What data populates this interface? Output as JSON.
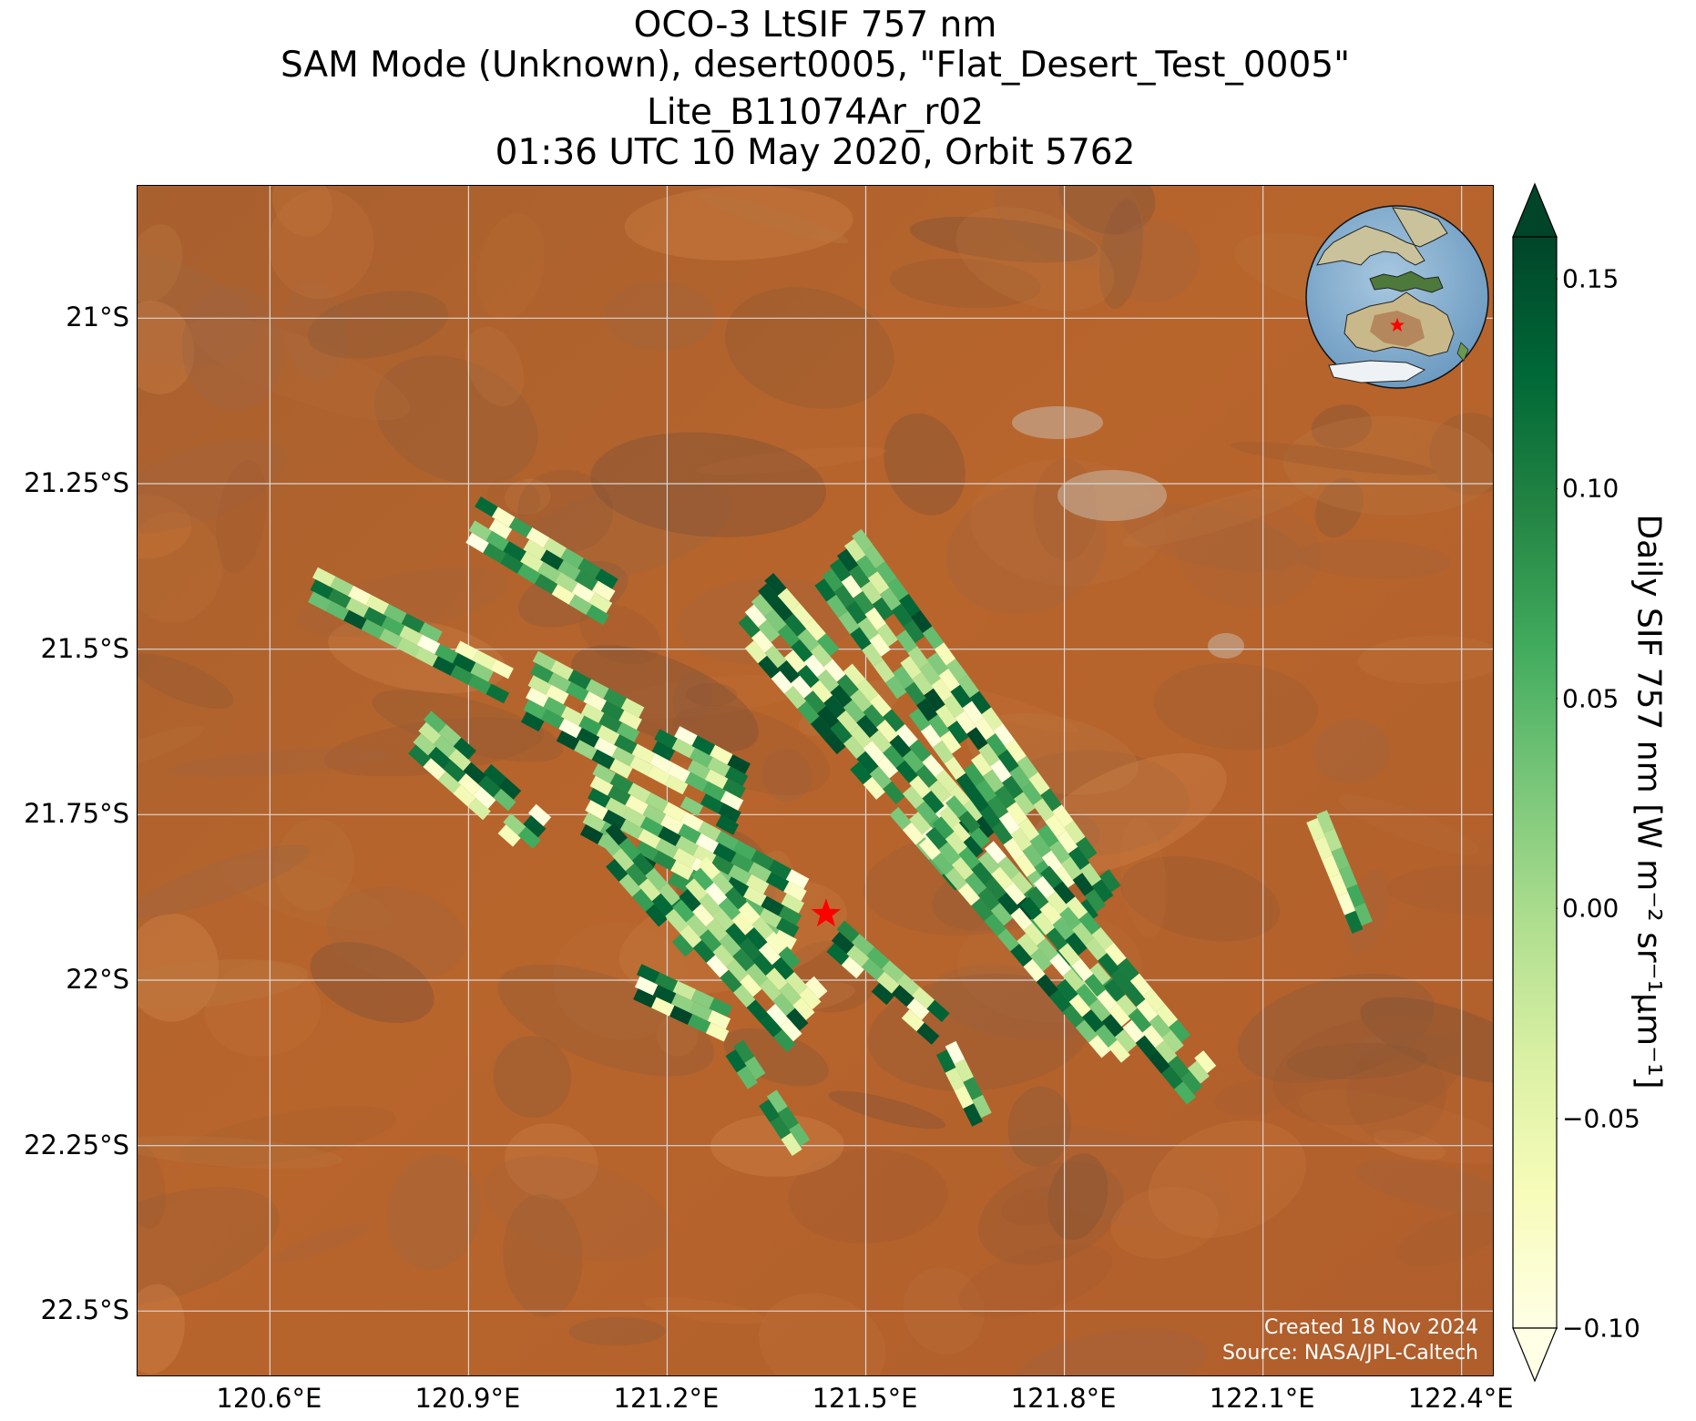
{
  "title": {
    "line1": "OCO-3 LtSIF 757 nm",
    "line2": "SAM Mode (Unknown), desert0005, \"Flat_Desert_Test_0005\"",
    "line3": "Lite_B11074Ar_r02",
    "line4": "01:36 UTC 10 May 2020, Orbit 5762"
  },
  "map": {
    "lon_range": [
      120.4,
      122.45
    ],
    "lat_range": [
      -22.6,
      -20.8
    ],
    "lon_ticks": [
      "120.6°E",
      "120.9°E",
      "121.2°E",
      "121.5°E",
      "121.8°E",
      "122.1°E",
      "122.4°E"
    ],
    "lat_ticks": [
      "21°S",
      "21.25°S",
      "21.5°S",
      "21.75°S",
      "22°S",
      "22.25°S",
      "22.5°S"
    ],
    "target_marker": {
      "lon": 121.44,
      "lat": -21.9,
      "symbol": "star",
      "color": "#ff0000"
    },
    "background": "satellite imagery (desert, reddish-brown)",
    "inset_globe": {
      "marker_lon": 121.44,
      "marker_lat": -21.9,
      "region": "Australia / SE Asia"
    }
  },
  "credit": {
    "line1": "Created 18 Nov 2024",
    "line2": "Source: NASA/JPL-Caltech"
  },
  "colorbar": {
    "label": "Daily SIF 757 nm [W m⁻² sr⁻¹μm⁻¹]",
    "ticks": [
      "0.15",
      "0.10",
      "0.05",
      "0.00",
      "−0.05",
      "−0.10"
    ],
    "vmin": -0.1,
    "vmax": 0.16,
    "cmap": "YlGn",
    "extend": "both"
  },
  "chart_data": {
    "type": "heatmap",
    "title": "OCO-3 LtSIF 757 nm",
    "xlabel": "",
    "ylabel": "",
    "variable": "Daily SIF 757 nm",
    "units": "W m-2 sr-1 um-1",
    "value_range": [
      -0.1,
      0.16
    ],
    "xlim": [
      120.4,
      122.45
    ],
    "ylim": [
      -22.6,
      -20.8
    ],
    "swaths": [
      {
        "from_lon": 120.66,
        "from_lat": -21.4,
        "to_lon": 120.95,
        "to_lat": -21.55,
        "width_deg": 0.06
      },
      {
        "from_lon": 120.9,
        "from_lat": -21.3,
        "to_lon": 121.1,
        "to_lat": -21.42,
        "width_deg": 0.08
      },
      {
        "from_lon": 120.82,
        "from_lat": -21.62,
        "to_lon": 121.0,
        "to_lat": -21.78,
        "width_deg": 0.07
      },
      {
        "from_lon": 120.98,
        "from_lat": -21.55,
        "to_lon": 121.3,
        "to_lat": -21.72,
        "width_deg": 0.11
      },
      {
        "from_lon": 121.07,
        "from_lat": -21.72,
        "to_lon": 121.4,
        "to_lat": -21.9,
        "width_deg": 0.1
      },
      {
        "from_lon": 121.1,
        "from_lat": -21.78,
        "to_lon": 121.25,
        "to_lat": -21.95,
        "width_deg": 0.06
      },
      {
        "from_lon": 121.22,
        "from_lat": -21.85,
        "to_lon": 121.4,
        "to_lat": -22.05,
        "width_deg": 0.1
      },
      {
        "from_lon": 121.15,
        "from_lat": -22.0,
        "to_lon": 121.3,
        "to_lat": -22.07,
        "width_deg": 0.05
      },
      {
        "from_lon": 121.32,
        "from_lat": -21.42,
        "to_lon": 121.65,
        "to_lat": -21.8,
        "width_deg": 0.1
      },
      {
        "from_lon": 121.45,
        "from_lat": -21.35,
        "to_lon": 121.85,
        "to_lat": -21.9,
        "width_deg": 0.1
      },
      {
        "from_lon": 121.6,
        "from_lat": -21.75,
        "to_lon": 121.9,
        "to_lat": -22.1,
        "width_deg": 0.09
      },
      {
        "from_lon": 121.75,
        "from_lat": -21.85,
        "to_lon": 122.0,
        "to_lat": -22.15,
        "width_deg": 0.08
      },
      {
        "from_lon": 121.45,
        "from_lat": -21.93,
        "to_lon": 121.62,
        "to_lat": -22.08,
        "width_deg": 0.05
      },
      {
        "from_lon": 121.62,
        "from_lat": -22.1,
        "to_lon": 121.68,
        "to_lat": -22.22,
        "width_deg": 0.04
      },
      {
        "from_lon": 121.3,
        "from_lat": -22.1,
        "to_lon": 121.4,
        "to_lat": -22.25,
        "width_deg": 0.04
      },
      {
        "from_lon": 122.18,
        "from_lat": -21.75,
        "to_lon": 122.25,
        "to_lat": -21.92,
        "width_deg": 0.04
      }
    ]
  }
}
